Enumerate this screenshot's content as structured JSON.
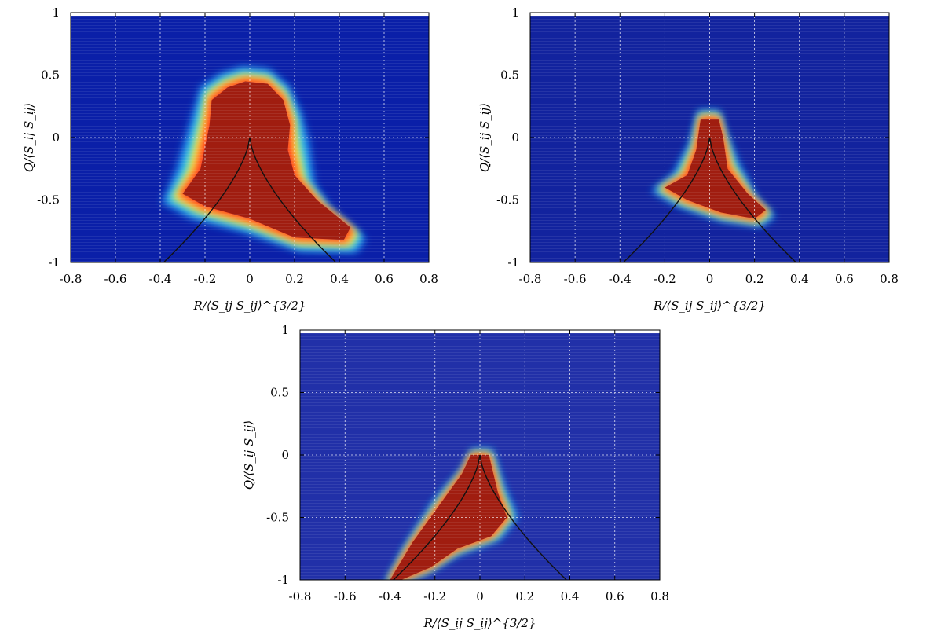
{
  "chart_data": [
    {
      "type": "heatmap",
      "id": "top-left",
      "xlabel": "R/⟨S_ij S_ij⟩^{3/2}",
      "ylabel": "Q/⟨S_ij S_ij⟩",
      "xlim": [
        -0.8,
        0.8
      ],
      "ylim": [
        -1,
        1
      ],
      "x_ticks": [
        "-0.8",
        "-0.6",
        "-0.4",
        "-0.2",
        "0",
        "0.2",
        "0.4",
        "0.6",
        "0.8"
      ],
      "y_ticks": [
        "1",
        "0.5",
        "0",
        "-0.5",
        "-1"
      ],
      "grid": true,
      "colormap": "jet",
      "background_color": "#0a1fa8",
      "high_density_region": [
        [
          -0.02,
          0.45
        ],
        [
          0.08,
          0.43
        ],
        [
          0.15,
          0.3
        ],
        [
          0.18,
          0.1
        ],
        [
          0.17,
          -0.1
        ],
        [
          0.2,
          -0.3
        ],
        [
          0.3,
          -0.5
        ],
        [
          0.45,
          -0.72
        ],
        [
          0.42,
          -0.82
        ],
        [
          0.2,
          -0.8
        ],
        [
          0.0,
          -0.65
        ],
        [
          -0.2,
          -0.55
        ],
        [
          -0.3,
          -0.45
        ],
        [
          -0.22,
          -0.25
        ],
        [
          -0.18,
          0.1
        ],
        [
          -0.17,
          0.3
        ],
        [
          -0.1,
          0.4
        ]
      ],
      "halo": [
        0.12,
        0.09,
        0.06
      ],
      "curve": "Q = -(27/4)^{1/3} R^{2/3}"
    },
    {
      "type": "heatmap",
      "id": "top-right",
      "xlabel": "R/⟨S_ij S_ij⟩^{3/2}",
      "ylabel": "Q/⟨S_ij S_ij⟩",
      "xlim": [
        -0.8,
        0.8
      ],
      "ylim": [
        -1,
        1
      ],
      "x_ticks": [
        "-0.8",
        "-0.6",
        "-0.4",
        "-0.2",
        "0",
        "0.2",
        "0.4",
        "0.6",
        "0.8"
      ],
      "y_ticks": [
        "1",
        "0.5",
        "0",
        "-0.5",
        "-1"
      ],
      "grid": true,
      "colormap": "jet",
      "background_color": "#12239e",
      "high_density_region": [
        [
          -0.04,
          0.15
        ],
        [
          0.04,
          0.15
        ],
        [
          0.06,
          0.0
        ],
        [
          0.08,
          -0.25
        ],
        [
          0.17,
          -0.45
        ],
        [
          0.25,
          -0.58
        ],
        [
          0.2,
          -0.65
        ],
        [
          0.05,
          -0.6
        ],
        [
          -0.1,
          -0.5
        ],
        [
          -0.2,
          -0.4
        ],
        [
          -0.1,
          -0.3
        ],
        [
          -0.06,
          -0.1
        ]
      ],
      "halo": [
        0.07,
        0.05,
        0.035
      ],
      "curve": "Q = -(27/4)^{1/3} R^{2/3}"
    },
    {
      "type": "heatmap",
      "id": "bottom",
      "xlabel": "R/⟨S_ij S_ij⟩^{3/2}",
      "ylabel": "Q/⟨S_ij S_ij⟩",
      "xlim": [
        -0.8,
        0.8
      ],
      "ylim": [
        -1,
        1
      ],
      "x_ticks": [
        "-0.8",
        "-0.6",
        "-0.4",
        "-0.2",
        "0",
        "0.2",
        "0.4",
        "0.6",
        "0.8"
      ],
      "y_ticks": [
        "1",
        "0.5",
        "0",
        "-0.5",
        "-1"
      ],
      "grid": true,
      "colormap": "jet",
      "background_color": "#2130a8",
      "high_density_region": [
        [
          -0.04,
          0.0
        ],
        [
          0.04,
          0.0
        ],
        [
          0.08,
          -0.3
        ],
        [
          0.12,
          -0.5
        ],
        [
          0.05,
          -0.65
        ],
        [
          -0.1,
          -0.75
        ],
        [
          -0.22,
          -0.9
        ],
        [
          -0.35,
          -1.0
        ],
        [
          -0.4,
          -1.0
        ],
        [
          -0.3,
          -0.7
        ],
        [
          -0.18,
          -0.4
        ],
        [
          -0.08,
          -0.15
        ]
      ],
      "halo": [
        0.05,
        0.035,
        0.02
      ],
      "curve": "Q = -(27/4)^{1/3} R^{2/3}"
    }
  ]
}
